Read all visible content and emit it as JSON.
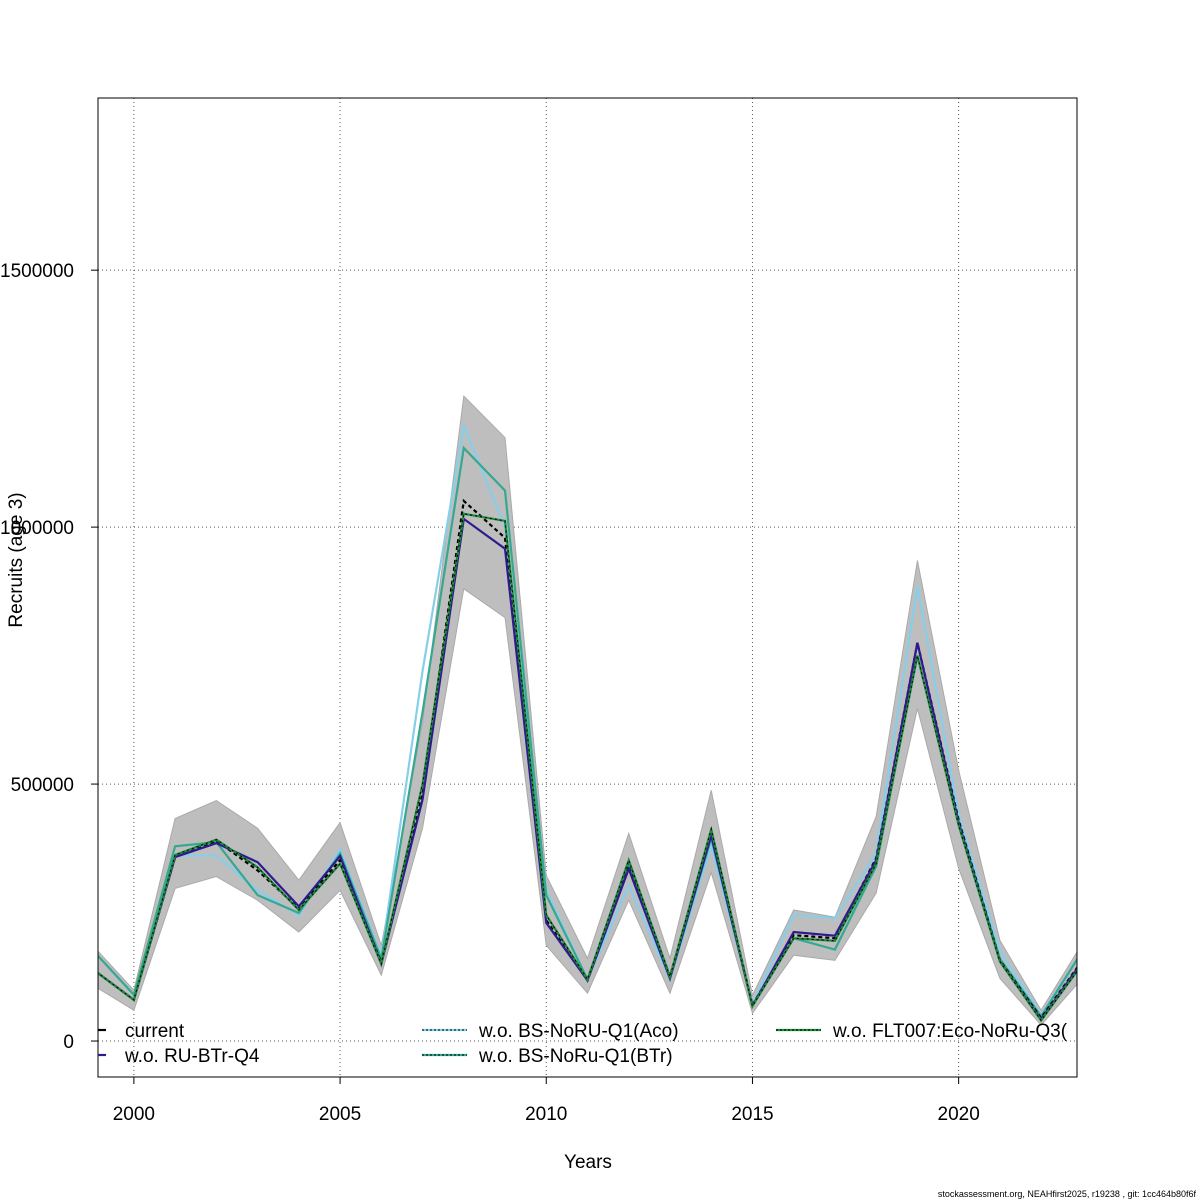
{
  "chart_data": {
    "type": "line",
    "title": "",
    "xlabel": "Years",
    "ylabel": "Recruits (age 3)",
    "xlim": [
      1999.13,
      2022.87
    ],
    "ylim": [
      -70000,
      1835000
    ],
    "grid": true,
    "legend_position": "bottom",
    "x_ticks": [
      2000,
      2005,
      2010,
      2015,
      2020
    ],
    "x_tick_labels": [
      "2000",
      "2005",
      "2010",
      "2015",
      "2020"
    ],
    "y_ticks": [
      0,
      500000,
      1000000,
      1500000
    ],
    "y_tick_labels": [
      "0",
      "500000",
      "1000000",
      "1500000"
    ],
    "x": [
      1999,
      2000,
      2001,
      2002,
      2003,
      2004,
      2005,
      2006,
      2007,
      2008,
      2009,
      2010,
      2011,
      2012,
      2013,
      2014,
      2015,
      2016,
      2017,
      2018,
      2019,
      2020,
      2021,
      2022,
      2023
    ],
    "ci_band": {
      "color": "#bebebe",
      "upper": [
        186000,
        99000,
        433000,
        468000,
        414000,
        313000,
        425000,
        186000,
        620000,
        1255000,
        1174000,
        322000,
        161000,
        404000,
        161000,
        488000,
        89000,
        255000,
        241000,
        437000,
        935000,
        527000,
        196000,
        60000,
        190000
      ],
      "lower": [
        109000,
        60000,
        297000,
        320000,
        274000,
        212000,
        293000,
        128000,
        414000,
        880000,
        824000,
        186000,
        93000,
        274000,
        93000,
        328000,
        54000,
        167000,
        157000,
        288000,
        647000,
        336000,
        122000,
        31000,
        122000
      ]
    },
    "series": [
      {
        "name": "current",
        "color": "#000000",
        "dash": "4,3",
        "values": [
          140000,
          80000,
          358000,
          390000,
          332000,
          258000,
          352000,
          153000,
          488000,
          1051000,
          979000,
          235000,
          118000,
          348000,
          126000,
          410000,
          70000,
          206000,
          200000,
          356000,
          775000,
          430000,
          157000,
          45000,
          157000
        ]
      },
      {
        "name": "w.o. RU-BTr-Q4",
        "color": "#2e1a8e",
        "dash": "",
        "values": [
          140000,
          80000,
          358000,
          385000,
          348000,
          262000,
          360000,
          150000,
          470000,
          1016000,
          958000,
          230000,
          118000,
          335000,
          122000,
          400000,
          68000,
          212000,
          205000,
          352000,
          775000,
          425000,
          155000,
          42000,
          155000
        ]
      },
      {
        "name": "w.o. BS-NoRU-Q1(Aco)",
        "color": "#87ceeb",
        "dash": "",
        "values": [
          177000,
          90000,
          361000,
          361000,
          293000,
          245000,
          372000,
          165000,
          720000,
          1197000,
          1000000,
          293000,
          120000,
          303000,
          120000,
          381000,
          72000,
          245000,
          239000,
          365000,
          886000,
          440000,
          175000,
          50000,
          175000
        ]
      },
      {
        "name": "w.o. BS-NoRu-Q1(BTr)",
        "color": "#35a891",
        "dash": "",
        "values": [
          177000,
          90000,
          379000,
          387000,
          284000,
          249000,
          365000,
          160000,
          640000,
          1154000,
          1071000,
          284000,
          120000,
          345000,
          122000,
          395000,
          70000,
          200000,
          178000,
          340000,
          750000,
          425000,
          160000,
          48000,
          175000
        ]
      },
      {
        "name": "w.o. FLT007:Eco-NoRu-Q3(",
        "color": "#1e8a3c",
        "dash": "",
        "values": [
          140000,
          80000,
          362000,
          392000,
          338000,
          255000,
          345000,
          150000,
          500000,
          1026000,
          1012000,
          245000,
          120000,
          352000,
          125000,
          412000,
          68000,
          200000,
          195000,
          345000,
          750000,
          420000,
          155000,
          40000,
          150000
        ]
      }
    ],
    "footer": "stockassessment.org, NEAHfirst2025, r19238 , git: 1cc464b80f6f"
  }
}
